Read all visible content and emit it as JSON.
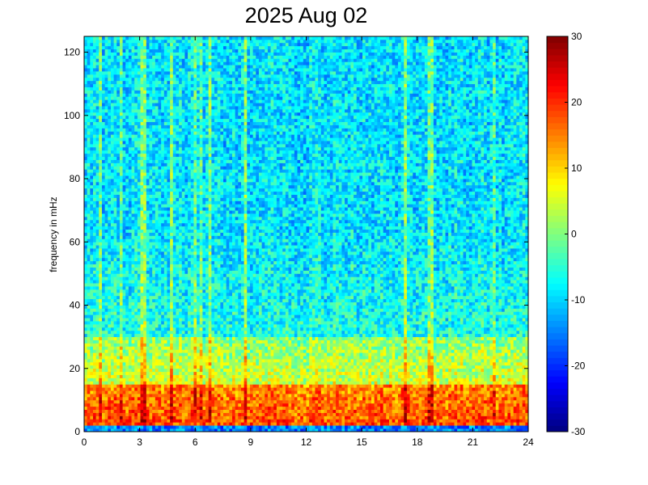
{
  "chart_data": {
    "type": "heatmap",
    "title": "2025 Aug 02",
    "xlabel": "",
    "ylabel": "frequency in mHz",
    "x_ticks": [
      "0",
      "3",
      "6",
      "9",
      "12",
      "15",
      "18",
      "21",
      "24"
    ],
    "x_range": [
      0,
      24
    ],
    "y_ticks": [
      "0",
      "20",
      "40",
      "60",
      "80",
      "100",
      "120"
    ],
    "y_range": [
      0,
      125
    ],
    "colorbar": {
      "range": [
        -30,
        30
      ],
      "ticks": [
        "30",
        "20",
        "10",
        "0",
        "-10",
        "-20",
        "-30"
      ],
      "colormap": "jet"
    },
    "grid": false,
    "description_of_values": {
      "band_0_2_mHz": -15,
      "band_3_15_mHz": 18,
      "band_15_30_mHz": 5,
      "band_30_60_mHz": -6,
      "band_60_125_mHz": -9
    }
  },
  "colors": {
    "jet_dark_blue": "#00008f",
    "jet_blue": "#0000ff",
    "jet_cyan": "#00ffff",
    "jet_yellow": "#ffff00",
    "jet_red": "#ff0000",
    "jet_dark_red": "#800000"
  }
}
